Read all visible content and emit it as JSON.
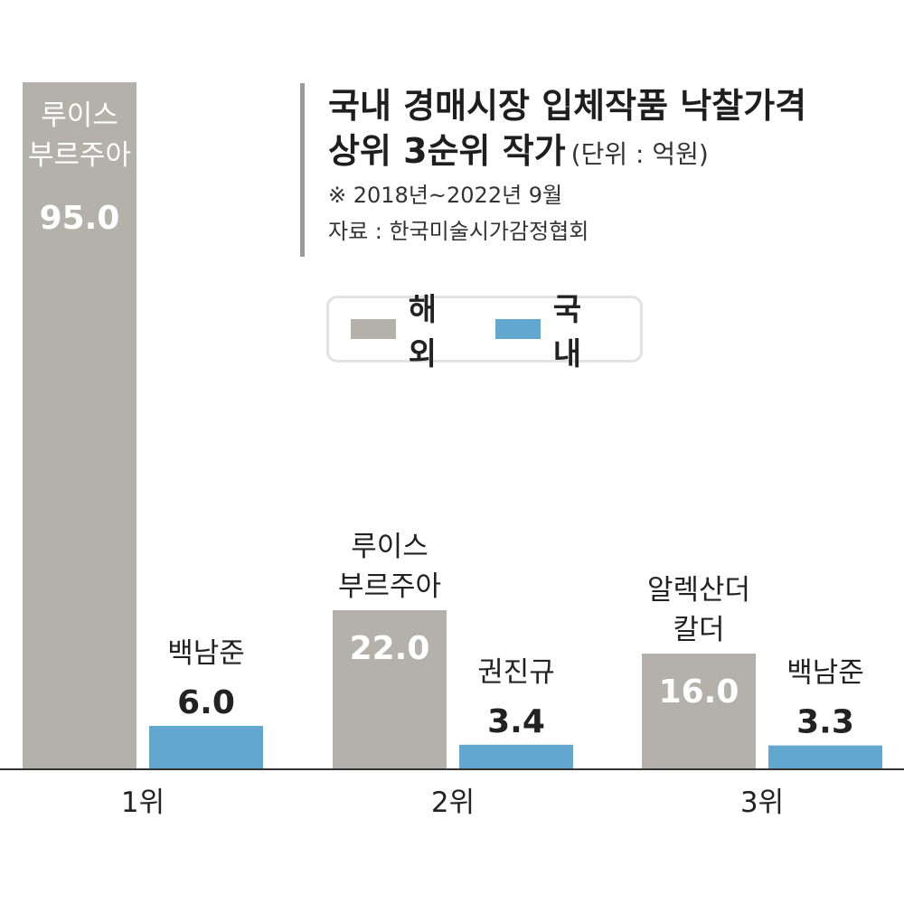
{
  "title": {
    "line1": "국내 경매시장 입체작품 낙찰가격",
    "line2": "상위 3순위 작가",
    "unit": "(단위 : 억원)",
    "period": "※ 2018년~2022년 9월",
    "source": "자료 : 한국미술시가감정협회"
  },
  "legend": [
    {
      "label": "해외",
      "color": "#b3b1aa"
    },
    {
      "label": "국내",
      "color": "#62a7cf"
    }
  ],
  "chart_data": {
    "type": "bar",
    "categories": [
      "1위",
      "2위",
      "3위"
    ],
    "series": [
      {
        "name": "해외",
        "color": "#b3b1aa",
        "values": [
          95.0,
          22.0,
          16.0
        ],
        "value_labels": [
          "95.0",
          "22.0",
          "16.0"
        ],
        "artists": [
          [
            "루이스",
            "부르주아"
          ],
          [
            "루이스",
            "부르주아"
          ],
          [
            "알렉산더",
            "칼더"
          ]
        ]
      },
      {
        "name": "국내",
        "color": "#62a7cf",
        "values": [
          6.0,
          3.4,
          3.3
        ],
        "value_labels": [
          "6.0",
          "3.4",
          "3.3"
        ],
        "artists": [
          [
            "백남준"
          ],
          [
            "권진규"
          ],
          [
            "백남준"
          ]
        ]
      }
    ],
    "ylim": [
      0,
      95
    ],
    "grid": false,
    "legend_position": "top-center"
  }
}
